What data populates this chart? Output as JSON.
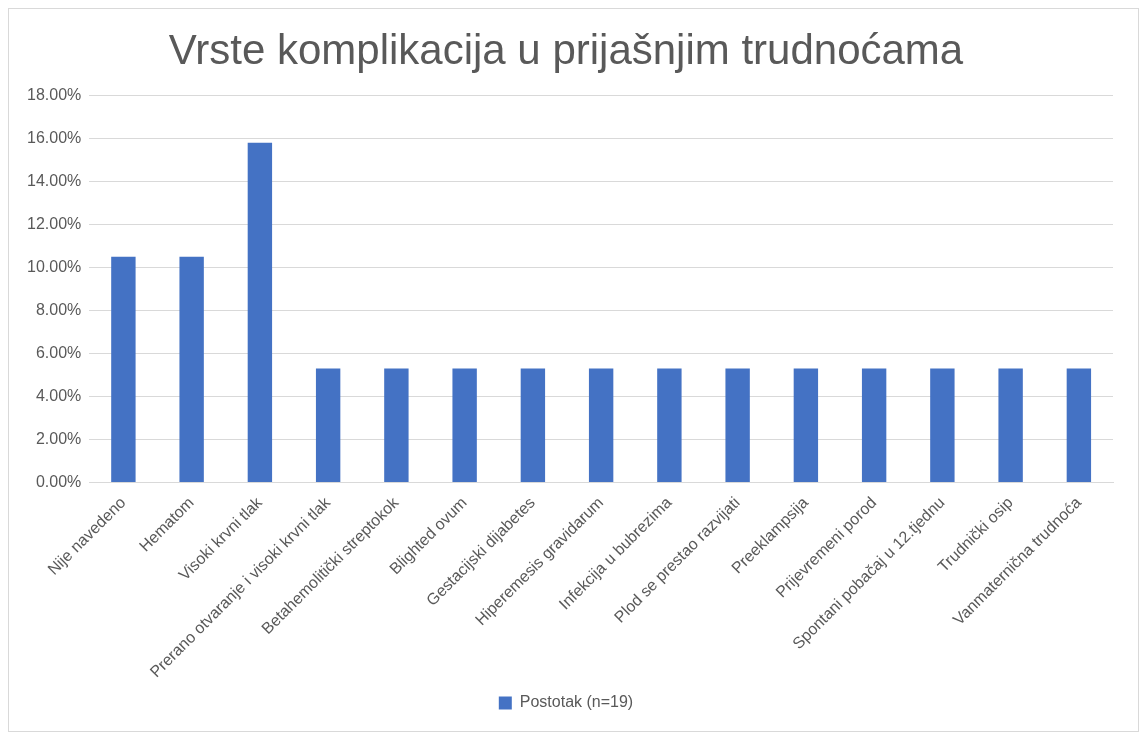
{
  "chart_data": {
    "type": "bar",
    "title": "Vrste komplikacija u prijašnjim trudnoćama",
    "categories": [
      "Nije navedeno",
      "Hematom",
      "Visoki krvni tlak",
      "Prerano otvaranje i visoki krvni tlak",
      "Betahemolitički streptokok",
      "Blighted ovum",
      "Gestacijski dijabetes",
      "Hiperemesis gravidarum",
      "Infekcija u bubrezima",
      "Plod se prestao razvijati",
      "Preeklampsija",
      "Prijevremeni porod",
      "Spontani pobačaj u 12.tjednu",
      "Trudnički osip",
      "Vanmaternična trudnoća"
    ],
    "series": [
      {
        "name": "Postotak (n=19)",
        "color": "#4472c4",
        "values": [
          10.5,
          10.5,
          15.8,
          5.3,
          5.3,
          5.3,
          5.3,
          5.3,
          5.3,
          5.3,
          5.3,
          5.3,
          5.3,
          5.3,
          5.3
        ]
      }
    ],
    "ylim": [
      0,
      18
    ],
    "yticks": [
      {
        "value": 0,
        "label": "0.00%"
      },
      {
        "value": 2,
        "label": "2.00%"
      },
      {
        "value": 4,
        "label": "4.00%"
      },
      {
        "value": 6,
        "label": "6.00%"
      },
      {
        "value": 8,
        "label": "8.00%"
      },
      {
        "value": 10,
        "label": "10.00%"
      },
      {
        "value": 12,
        "label": "12.00%"
      },
      {
        "value": 14,
        "label": "14.00%"
      },
      {
        "value": 16,
        "label": "16.00%"
      },
      {
        "value": 18,
        "label": "18.00%"
      }
    ],
    "grid": "y",
    "legend": "bottom"
  }
}
